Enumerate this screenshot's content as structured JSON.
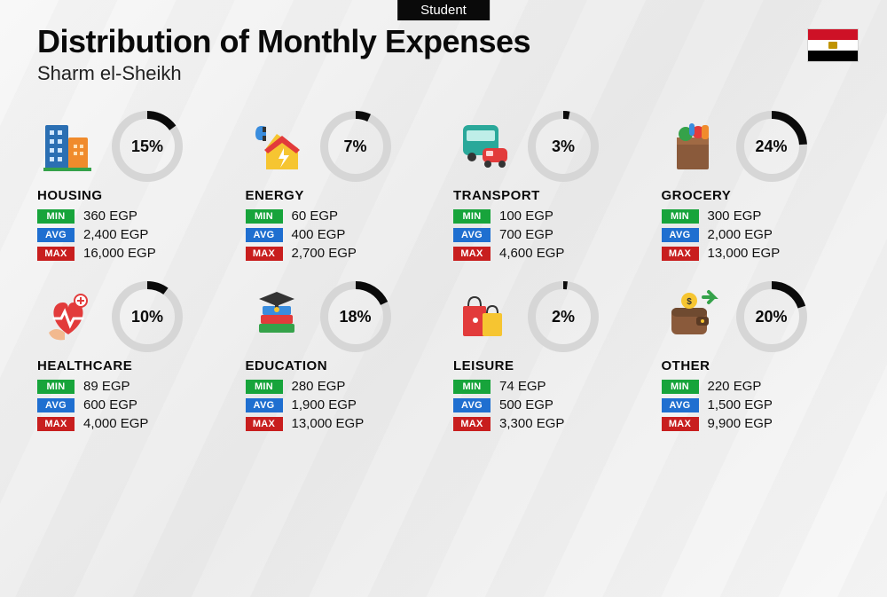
{
  "badge": "Student",
  "title": "Distribution of Monthly Expenses",
  "subtitle": "Sharm el-Sheikh",
  "currency": "EGP",
  "flag_colors": {
    "top": "#ce1126",
    "middle": "#ffffff",
    "bottom": "#000000",
    "emblem": "#c09300"
  },
  "donut_style": {
    "size": 80,
    "stroke_width": 9,
    "track_color": "#d6d6d6",
    "progress_color": "#0a0a0a",
    "label_fontsize": 18
  },
  "tag_colors": {
    "min": "#17a43b",
    "avg": "#1f6fd0",
    "max": "#c81e1e"
  },
  "tag_labels": {
    "min": "MIN",
    "avg": "AVG",
    "max": "MAX"
  },
  "title_fontsize": 36,
  "subtitle_fontsize": 22,
  "category_fontsize": 15,
  "value_fontsize": 15,
  "background_gradient": [
    "#f8f8f8",
    "#ececec",
    "#f8f8f8"
  ],
  "categories": [
    {
      "key": "housing",
      "name": "HOUSING",
      "percent": 15,
      "min": "360 EGP",
      "avg": "2,400 EGP",
      "max": "16,000 EGP",
      "icon": "buildings"
    },
    {
      "key": "energy",
      "name": "ENERGY",
      "percent": 7,
      "min": "60 EGP",
      "avg": "400 EGP",
      "max": "2,700 EGP",
      "icon": "energy-house"
    },
    {
      "key": "transport",
      "name": "TRANSPORT",
      "percent": 3,
      "min": "100 EGP",
      "avg": "700 EGP",
      "max": "4,600 EGP",
      "icon": "bus-car"
    },
    {
      "key": "grocery",
      "name": "GROCERY",
      "percent": 24,
      "min": "300 EGP",
      "avg": "2,000 EGP",
      "max": "13,000 EGP",
      "icon": "grocery-bag"
    },
    {
      "key": "healthcare",
      "name": "HEALTHCARE",
      "percent": 10,
      "min": "89 EGP",
      "avg": "600 EGP",
      "max": "4,000 EGP",
      "icon": "heart-care"
    },
    {
      "key": "education",
      "name": "EDUCATION",
      "percent": 18,
      "min": "280 EGP",
      "avg": "1,900 EGP",
      "max": "13,000 EGP",
      "icon": "grad-books"
    },
    {
      "key": "leisure",
      "name": "LEISURE",
      "percent": 2,
      "min": "74 EGP",
      "avg": "500 EGP",
      "max": "3,300 EGP",
      "icon": "shopping-bags"
    },
    {
      "key": "other",
      "name": "OTHER",
      "percent": 20,
      "min": "220 EGP",
      "avg": "1,500 EGP",
      "max": "9,900 EGP",
      "icon": "wallet-cash"
    }
  ],
  "icon_palette": {
    "blue": "#2b6fb3",
    "blue2": "#3a8dde",
    "orange": "#f08b2c",
    "yellow": "#f6c531",
    "red": "#e23b3b",
    "green": "#35a24a",
    "teal": "#2aa89a",
    "brown": "#8a5a3b",
    "dark": "#333333",
    "purple": "#6b4fa0",
    "skin": "#f2b98f"
  }
}
